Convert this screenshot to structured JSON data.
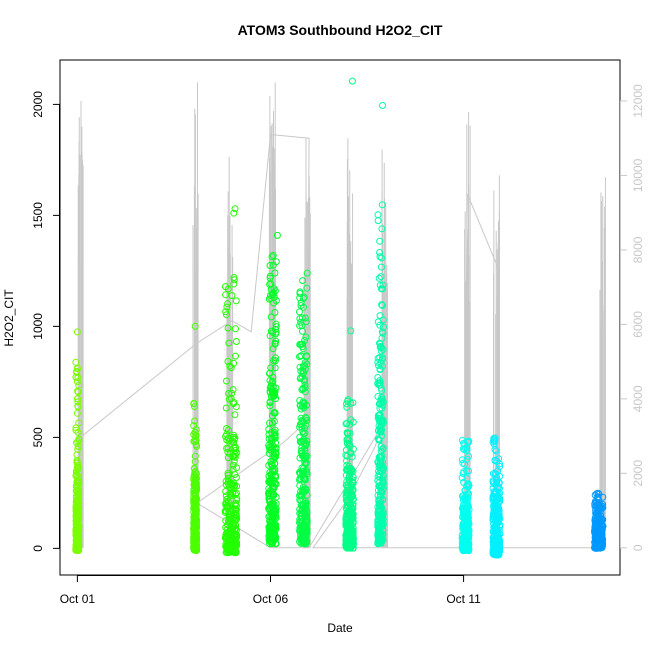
{
  "chart_data": {
    "type": "scatter",
    "title": "ATOM3 Southbound H2O2_CIT",
    "xlabel": "Date",
    "ylabel": "H2O2_CIT",
    "x_ticks": [
      {
        "value": 0,
        "label": "Oct 01"
      },
      {
        "value": 5,
        "label": "Oct 06"
      },
      {
        "value": 10,
        "label": "Oct 11"
      }
    ],
    "xlim": [
      -0.45,
      14.05
    ],
    "ylim": [
      -120,
      2200
    ],
    "y_ticks": [
      0,
      500,
      1000,
      1500,
      2000
    ],
    "y2lim": [
      -730,
      13100
    ],
    "y2_ticks": [
      0,
      2000,
      4000,
      6000,
      8000,
      10000,
      12000
    ],
    "y2_color": "#c8c8c8",
    "grid": false,
    "legend": "none",
    "series": [
      {
        "role": "H2O2_CIT (left axis), points colored by latitude",
        "clusters": [
          {
            "x": 0.0,
            "width": 0.08,
            "ymin": -10,
            "ymax": 840,
            "dense_to": 450,
            "color": "#7cfc00",
            "outliers": [
              {
                "x": 0.0,
                "y": 975
              }
            ]
          },
          {
            "x": 3.05,
            "width": 0.08,
            "ymin": -10,
            "ymax": 660,
            "dense_to": 380,
            "color": "#4cff00",
            "outliers": [
              {
                "x": 3.05,
                "y": 1000
              }
            ]
          },
          {
            "x": 3.98,
            "width": 0.3,
            "ymin": -20,
            "ymax": 1300,
            "dense_to": 600,
            "color": "#22ff00",
            "outliers": [
              {
                "x": 4.08,
                "y": 1530
              },
              {
                "x": 4.05,
                "y": 1510
              }
            ]
          },
          {
            "x": 5.05,
            "width": 0.2,
            "ymin": 20,
            "ymax": 1380,
            "dense_to": 1250,
            "color": "#00ff22",
            "outliers": [
              {
                "x": 5.18,
                "y": 1410
              }
            ]
          },
          {
            "x": 5.85,
            "width": 0.2,
            "ymin": 20,
            "ymax": 1230,
            "dense_to": 1180,
            "color": "#00ff44",
            "outliers": [
              {
                "x": 5.95,
                "y": 1240
              }
            ]
          },
          {
            "x": 7.05,
            "width": 0.2,
            "ymin": 0,
            "ymax": 680,
            "dense_to": 520,
            "color": "#00ff88",
            "outliers": [
              {
                "x": 7.08,
                "y": 980
              },
              {
                "x": 7.12,
                "y": 2105
              }
            ]
          },
          {
            "x": 7.85,
            "width": 0.15,
            "ymin": 20,
            "ymax": 1570,
            "dense_to": 1350,
            "color": "#00ffaa",
            "outliers": [
              {
                "x": 7.9,
                "y": 1995
              }
            ]
          },
          {
            "x": 10.05,
            "width": 0.18,
            "ymin": -10,
            "ymax": 490,
            "dense_to": 300,
            "color": "#00ffee",
            "outliers": []
          },
          {
            "x": 10.85,
            "width": 0.18,
            "ymin": -30,
            "ymax": 500,
            "dense_to": 350,
            "color": "#00f0ff",
            "outliers": []
          },
          {
            "x": 13.5,
            "width": 0.22,
            "ymin": 0,
            "ymax": 265,
            "dense_to": 215,
            "color": "#0099ff",
            "outliers": []
          }
        ]
      },
      {
        "role": "secondary trace (right axis), grey line",
        "color": "#c8c8c8",
        "clusters": [
          {
            "x": 0.07,
            "ymin": 0,
            "ymax": 12000
          },
          {
            "x": 3.05,
            "ymin": 0,
            "ymax": 12500
          },
          {
            "x": 3.95,
            "ymin": 0,
            "ymax": 10500
          },
          {
            "x": 5.05,
            "ymin": 0,
            "ymax": 12500
          },
          {
            "x": 5.95,
            "ymin": 0,
            "ymax": 11000
          },
          {
            "x": 7.05,
            "ymin": 0,
            "ymax": 11000
          },
          {
            "x": 7.95,
            "ymin": 0,
            "ymax": 10700
          },
          {
            "x": 10.1,
            "ymin": 0,
            "ymax": 11700
          },
          {
            "x": 10.85,
            "ymin": 0,
            "ymax": 10000
          },
          {
            "x": 13.6,
            "ymin": 0,
            "ymax": 9950
          }
        ],
        "path": [
          [
            0.0,
            2900
          ],
          [
            3.1,
            5500
          ],
          [
            4.0,
            6100
          ],
          [
            4.5,
            5800
          ],
          [
            5.0,
            11100
          ],
          [
            6.0,
            11000
          ],
          [
            5.95,
            3400
          ],
          [
            5.3,
            2800
          ],
          [
            4.6,
            2300
          ],
          [
            3.1,
            1200
          ],
          [
            5.0,
            0
          ],
          [
            6.0,
            0
          ],
          [
            7.9,
            3300
          ],
          [
            7.7,
            2700
          ],
          [
            7.0,
            1300
          ],
          [
            6.1,
            0
          ],
          [
            10.0,
            0
          ],
          [
            10.1,
            9500
          ],
          [
            10.9,
            7500
          ],
          [
            10.9,
            0
          ],
          [
            11.0,
            0
          ],
          [
            13.4,
            0
          ],
          [
            13.6,
            0
          ]
        ]
      }
    ]
  }
}
